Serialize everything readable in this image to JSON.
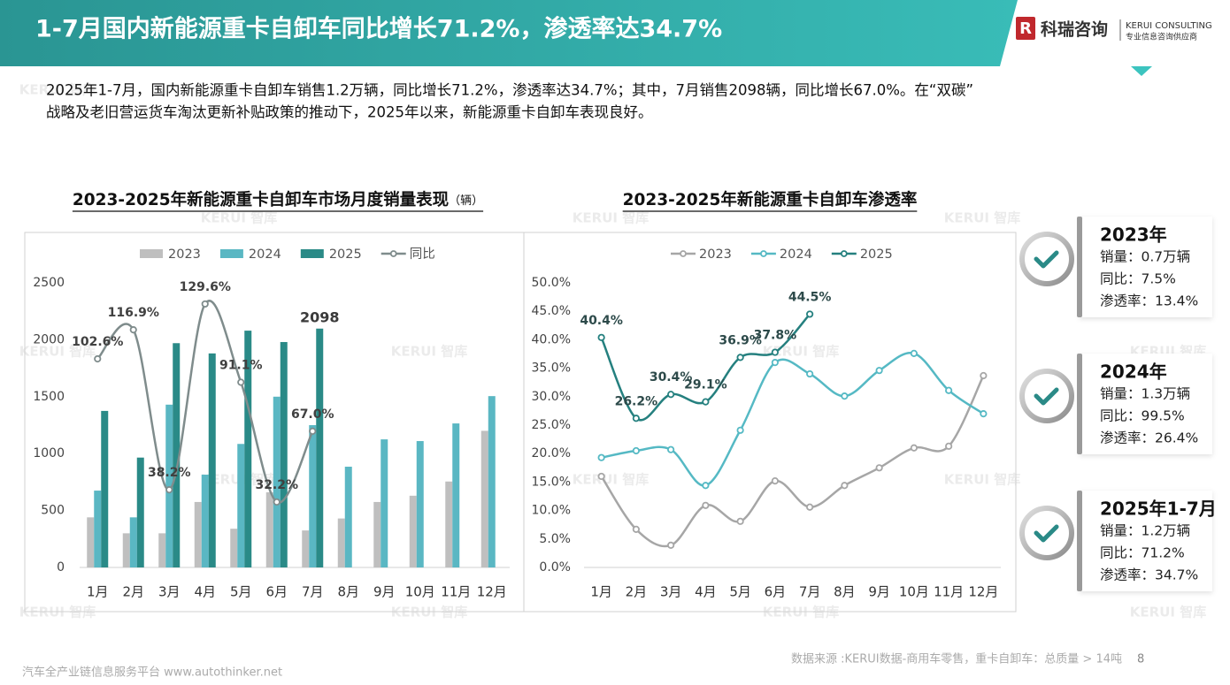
{
  "header": {
    "title": "1-7月国内新能源重卡自卸车同比增长71.2%，渗透率达34.7%",
    "logo": {
      "name": "科瑞咨询",
      "english": "KERUI CONSULTING",
      "tagline": "专业信息咨询供应商"
    }
  },
  "description": [
    "2025年1-7月，国内新能源重卡自卸车销售1.2万辆，同比增长71.2%，渗透率达34.7%；其中，7月销售2098辆，同比增长67.0%。在“双碳”",
    "战略及老旧营运货车淘汰更新补贴政策的推动下，2025年以来，新能源重卡自卸车表现良好。"
  ],
  "watermark": "KERUI 智库",
  "chart_data": [
    {
      "type": "bar",
      "title": "2023-2025年新能源重卡自卸车市场月度销量表现",
      "unit_label": "（辆）",
      "categories": [
        "1月",
        "2月",
        "3月",
        "4月",
        "5月",
        "6月",
        "7月",
        "8月",
        "9月",
        "10月",
        "11月",
        "12月"
      ],
      "series": [
        {
          "name": "2023",
          "type": "bar",
          "color": "#bfbfbf",
          "values": [
            440,
            300,
            300,
            575,
            340,
            660,
            325,
            430,
            575,
            630,
            755,
            1200
          ]
        },
        {
          "name": "2024",
          "type": "bar",
          "color": "#5ab7c3",
          "values": [
            675,
            440,
            1430,
            815,
            1085,
            1500,
            1250,
            885,
            1125,
            1110,
            1265,
            1505
          ]
        },
        {
          "name": "2025",
          "type": "bar",
          "color": "#2a8a87",
          "values": [
            1375,
            965,
            1970,
            1880,
            2080,
            1980,
            2098,
            null,
            null,
            null,
            null,
            null
          ]
        },
        {
          "name": "同比",
          "type": "line",
          "axis": "y2",
          "color": "#7f8c8c",
          "values": [
            102.6,
            116.9,
            38.2,
            129.6,
            91.1,
            32.2,
            67.0,
            null,
            null,
            null,
            null,
            null
          ],
          "value_labels": [
            "102.6%",
            "116.9%",
            "38.2%",
            "129.6%",
            "91.1%",
            "32.2%",
            "67.0%",
            null,
            null,
            null,
            null,
            null
          ]
        }
      ],
      "ylim": [
        0,
        2500
      ],
      "yticks": [
        0,
        500,
        1000,
        1500,
        2000,
        2500
      ],
      "y2lim": [
        0,
        140
      ],
      "grid": false,
      "legend": "top"
    },
    {
      "type": "line",
      "title": "2023-2025年新能源重卡自卸车渗透率",
      "categories": [
        "1月",
        "2月",
        "3月",
        "4月",
        "5月",
        "6月",
        "7月",
        "8月",
        "9月",
        "10月",
        "11月",
        "12月"
      ],
      "series": [
        {
          "name": "2023",
          "color": "#a6a6a6",
          "values": [
            16.0,
            6.7,
            3.9,
            10.9,
            8.1,
            15.2,
            10.6,
            14.4,
            17.5,
            21.0,
            21.3,
            33.7
          ]
        },
        {
          "name": "2024",
          "color": "#55b9c4",
          "values": [
            19.3,
            20.5,
            20.7,
            14.4,
            24.1,
            36.0,
            34.0,
            30.1,
            34.6,
            37.6,
            31.1,
            27.0
          ]
        },
        {
          "name": "2025",
          "color": "#25807f",
          "values": [
            40.4,
            26.2,
            30.4,
            29.1,
            36.9,
            37.8,
            44.5,
            null,
            null,
            null,
            null,
            null
          ],
          "value_labels": [
            "40.4%",
            "26.2%",
            "30.4%",
            "29.1%",
            "36.9%",
            "37.8%",
            "44.5%",
            null,
            null,
            null,
            null,
            null
          ]
        }
      ],
      "ylim": [
        0,
        50
      ],
      "yticks": [
        {
          "value": 0,
          "label": "0.0%"
        },
        {
          "value": 5,
          "label": "5.0%"
        },
        {
          "value": 10,
          "label": "10.0%"
        },
        {
          "value": 15,
          "label": "15.0%"
        },
        {
          "value": 20,
          "label": "20.0%"
        },
        {
          "value": 25,
          "label": "25.0%"
        },
        {
          "value": 30,
          "label": "30.0%"
        },
        {
          "value": 35,
          "label": "35.0%"
        },
        {
          "value": 40,
          "label": "40.0%"
        },
        {
          "value": 45,
          "label": "45.0%"
        },
        {
          "value": 50,
          "label": "50.0%"
        }
      ],
      "grid": false,
      "legend": "top"
    }
  ],
  "cards": [
    {
      "title": "2023年",
      "lines": [
        "销量：0.7万辆",
        "同比：7.5%",
        "渗透率：13.4%"
      ]
    },
    {
      "title": "2024年",
      "lines": [
        "销量：1.3万辆",
        "同比：99.5%",
        "渗透率：26.4%"
      ]
    },
    {
      "title": "2025年1-7月",
      "lines": [
        "销量：1.2万辆",
        "同比：71.2%",
        "渗透率：34.7%"
      ]
    }
  ],
  "footer": {
    "source": "数据来源 :KERUI数据-商用车零售，重卡自卸车：总质量 > 14吨",
    "page": "8",
    "platform": "汽车全产业链信息服务平台 www.autothinker.net"
  }
}
